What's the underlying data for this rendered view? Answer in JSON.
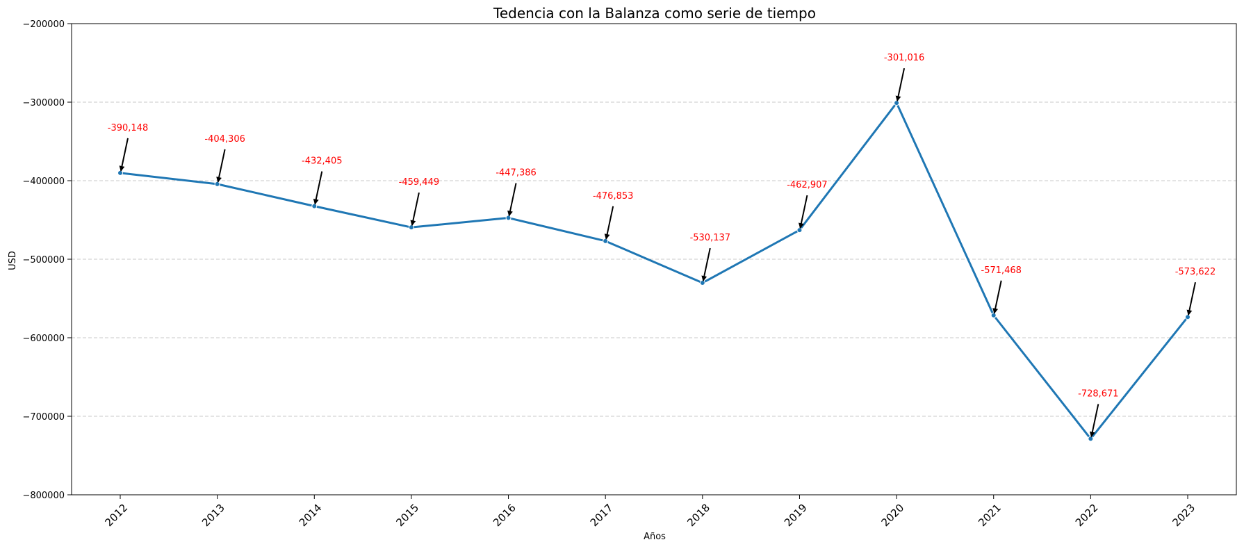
{
  "chart_data": {
    "type": "line",
    "title": "Tedencia con la Balanza como serie de tiempo",
    "xlabel": "Años",
    "ylabel": "USD",
    "categories": [
      "2012",
      "2013",
      "2014",
      "2015",
      "2016",
      "2017",
      "2018",
      "2019",
      "2020",
      "2021",
      "2022",
      "2023"
    ],
    "series": [
      {
        "values": [
          -390148,
          -404306,
          -432405,
          -459449,
          -447386,
          -476853,
          -530137,
          -462907,
          -301016,
          -571468,
          -728671,
          -573622
        ]
      }
    ],
    "data_labels": [
      "-390,148",
      "-404,306",
      "-432,405",
      "-459,449",
      "-447,386",
      "-476,853",
      "-530,137",
      "-462,907",
      "-301,016",
      "-571,468",
      "-728,671",
      "-573,622"
    ],
    "ylim": [
      -800000,
      -200000
    ],
    "yticks": [
      -800000,
      -700000,
      -600000,
      -500000,
      -400000,
      -300000,
      -200000
    ],
    "ytick_labels": [
      "−800000",
      "−700000",
      "−600000",
      "−500000",
      "−400000",
      "−300000",
      "−200000"
    ],
    "grid": "horizontal dashed",
    "colors": {
      "line": "#1f77b4",
      "annotation_text": "#ff0000",
      "arrow": "#000000",
      "grid": "#c8c8c8"
    }
  }
}
